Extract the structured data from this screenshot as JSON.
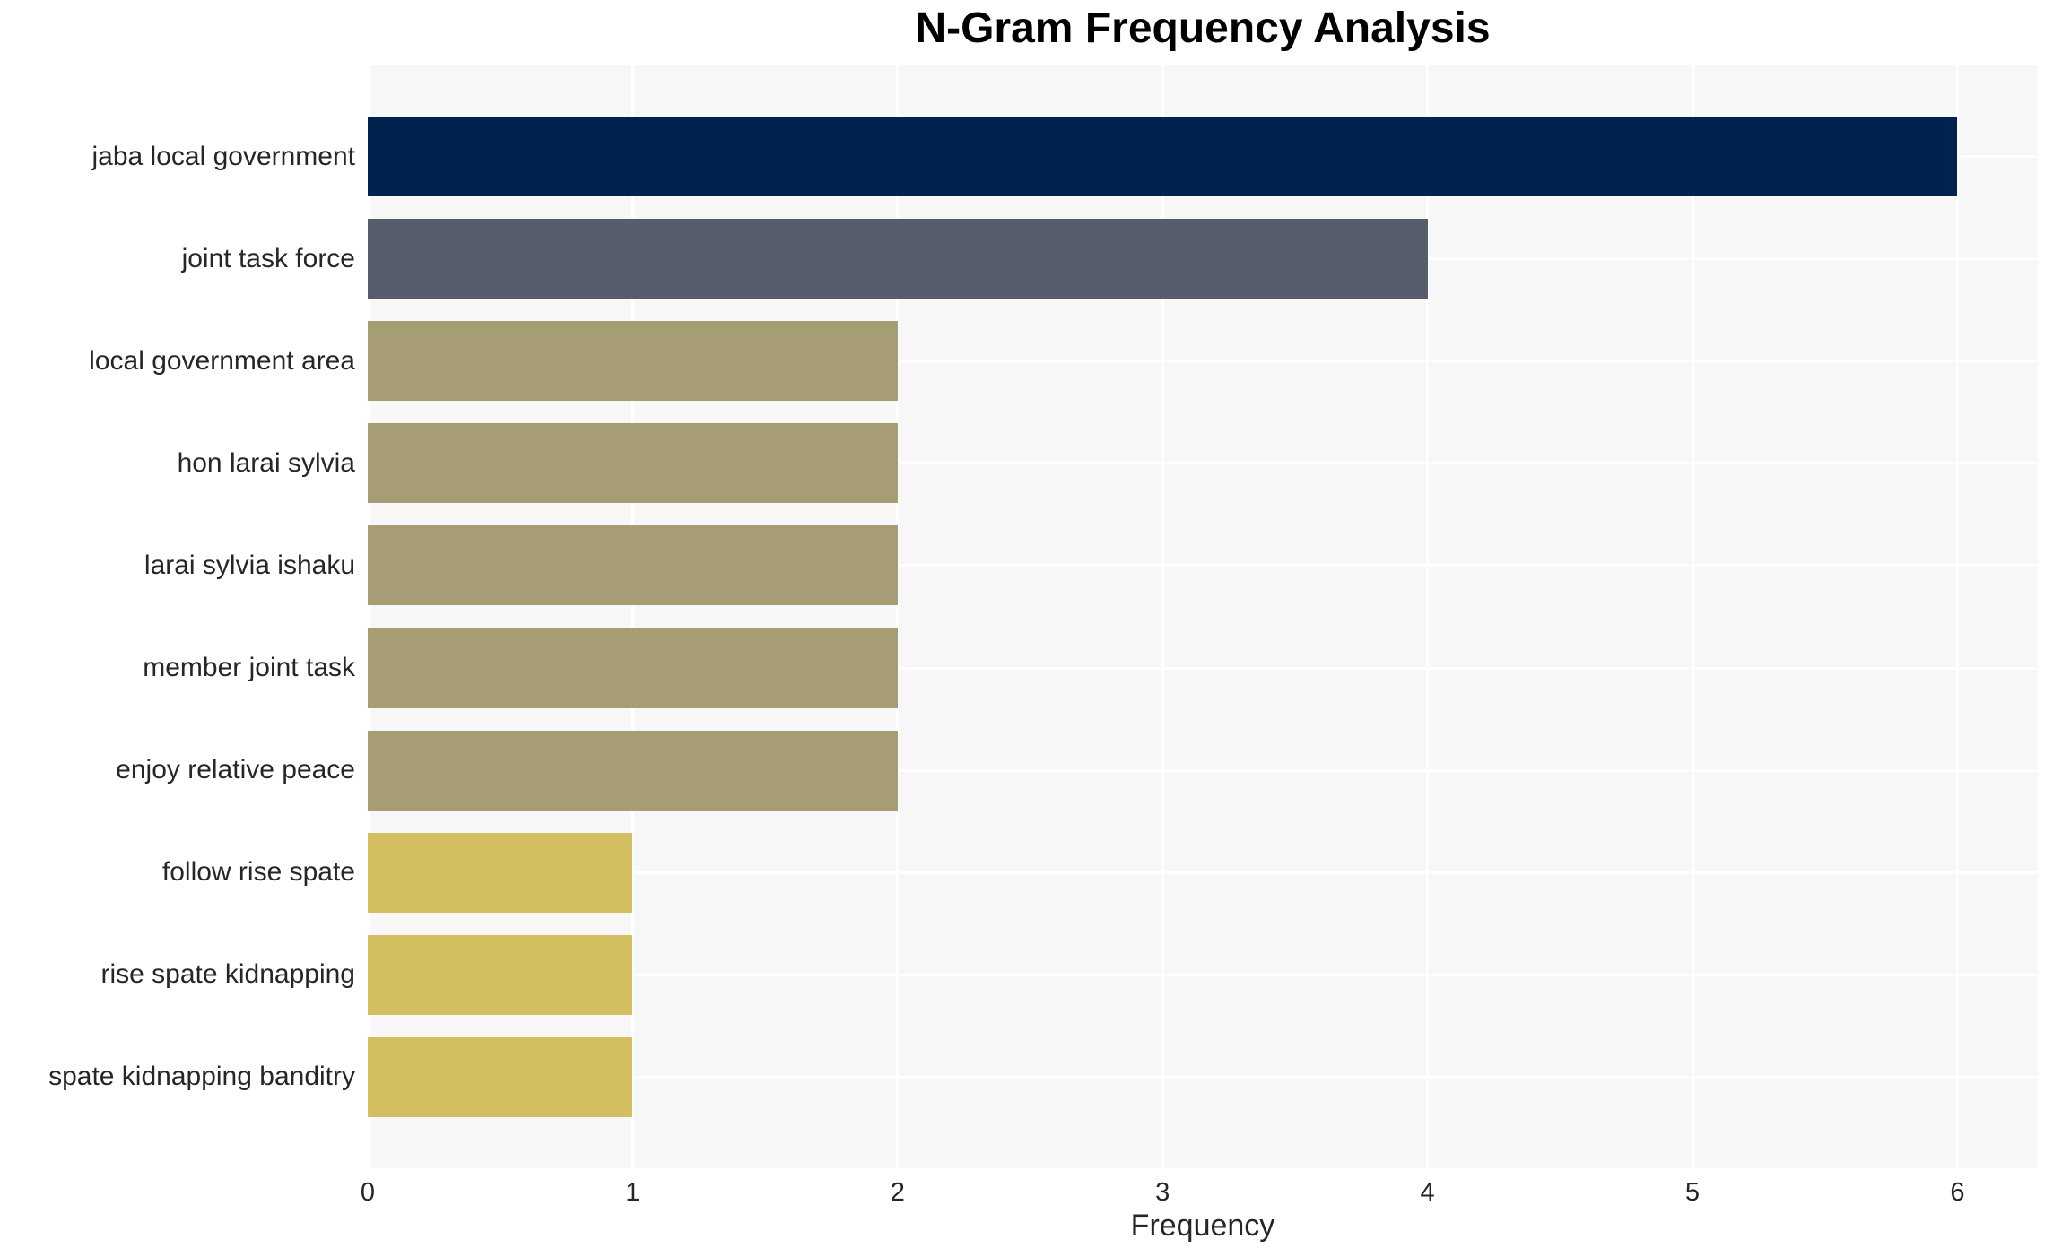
{
  "title": "N-Gram Frequency Analysis",
  "chart_data": {
    "type": "bar",
    "orientation": "horizontal",
    "title": "N-Gram Frequency Analysis",
    "xlabel": "Frequency",
    "ylabel": "",
    "categories": [
      "jaba local government",
      "joint task force",
      "local government area",
      "hon larai sylvia",
      "larai sylvia ishaku",
      "member joint task",
      "enjoy relative peace",
      "follow rise spate",
      "rise spate kidnapping",
      "spate kidnapping banditry"
    ],
    "values": [
      6,
      4,
      2,
      2,
      2,
      2,
      2,
      1,
      1,
      1
    ],
    "bar_colors": [
      "#00224e",
      "#575d6d",
      "#a69d75",
      "#a69d75",
      "#a69d75",
      "#a69d75",
      "#a69d75",
      "#d3bf60",
      "#d3bf60",
      "#d3bf60"
    ],
    "x_ticks": [
      0,
      1,
      2,
      3,
      4,
      5,
      6
    ],
    "xlim": [
      0,
      6.3
    ],
    "grid": true,
    "legend_position": "none",
    "plot_bg_color": "#f7f7f8",
    "grid_color": "#ffffff",
    "text_color": "#262626",
    "title_color": "#000000"
  }
}
